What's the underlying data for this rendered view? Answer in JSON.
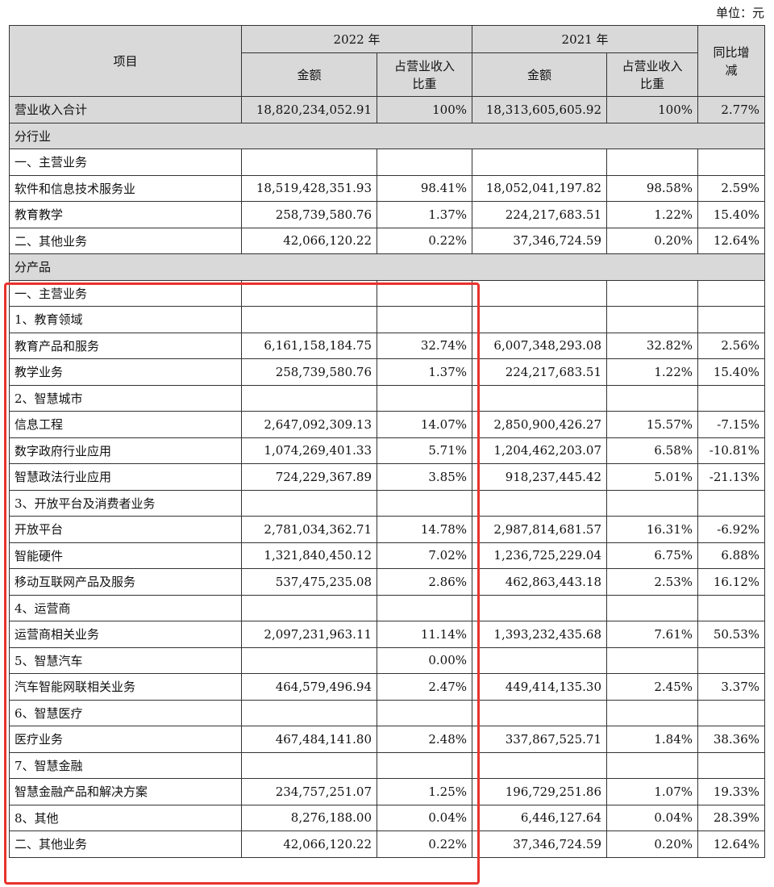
{
  "unit_label": "单位：元",
  "header": {
    "item": "项目",
    "year_2022": "2022 年",
    "year_2021": "2021 年",
    "amount": "金额",
    "share_line1": "占营业收入",
    "share_line2": "比重",
    "yoy_line1": "同比增",
    "yoy_line2": "减"
  },
  "total_row": {
    "name": "营业收入合计",
    "a2022": "18,820,234,052.91",
    "p2022": "100%",
    "a2021": "18,313,605,605.92",
    "p2021": "100%",
    "yoy": "2.77%"
  },
  "sections": {
    "industry": "分行业",
    "product": "分产品"
  },
  "industry_rows": [
    {
      "name": "一、主营业务",
      "a2022": "",
      "p2022": "",
      "a2021": "",
      "p2021": "",
      "yoy": ""
    },
    {
      "name": "软件和信息技术服务业",
      "a2022": "18,519,428,351.93",
      "p2022": "98.41%",
      "a2021": "18,052,041,197.82",
      "p2021": "98.58%",
      "yoy": "2.59%"
    },
    {
      "name": "教育教学",
      "a2022": "258,739,580.76",
      "p2022": "1.37%",
      "a2021": "224,217,683.51",
      "p2021": "1.22%",
      "yoy": "15.40%"
    },
    {
      "name": "二、其他业务",
      "a2022": "42,066,120.22",
      "p2022": "0.22%",
      "a2021": "37,346,724.59",
      "p2021": "0.20%",
      "yoy": "12.64%"
    }
  ],
  "product_rows": [
    {
      "name": "一、主营业务",
      "a2022": "",
      "p2022": "",
      "a2021": "",
      "p2021": "",
      "yoy": ""
    },
    {
      "name": "1、教育领域",
      "a2022": "",
      "p2022": "",
      "a2021": "",
      "p2021": "",
      "yoy": ""
    },
    {
      "name": "教育产品和服务",
      "a2022": "6,161,158,184.75",
      "p2022": "32.74%",
      "a2021": "6,007,348,293.08",
      "p2021": "32.82%",
      "yoy": "2.56%"
    },
    {
      "name": "教学业务",
      "a2022": "258,739,580.76",
      "p2022": "1.37%",
      "a2021": "224,217,683.51",
      "p2021": "1.22%",
      "yoy": "15.40%"
    },
    {
      "name": "2、智慧城市",
      "a2022": "",
      "p2022": "",
      "a2021": "",
      "p2021": "",
      "yoy": ""
    },
    {
      "name": "信息工程",
      "a2022": "2,647,092,309.13",
      "p2022": "14.07%",
      "a2021": "2,850,900,426.27",
      "p2021": "15.57%",
      "yoy": "-7.15%"
    },
    {
      "name": "数字政府行业应用",
      "a2022": "1,074,269,401.33",
      "p2022": "5.71%",
      "a2021": "1,204,462,203.07",
      "p2021": "6.58%",
      "yoy": "-10.81%"
    },
    {
      "name": "智慧政法行业应用",
      "a2022": "724,229,367.89",
      "p2022": "3.85%",
      "a2021": "918,237,445.42",
      "p2021": "5.01%",
      "yoy": "-21.13%"
    },
    {
      "name": "3、开放平台及消费者业务",
      "a2022": "",
      "p2022": "",
      "a2021": "",
      "p2021": "",
      "yoy": ""
    },
    {
      "name": "开放平台",
      "a2022": "2,781,034,362.71",
      "p2022": "14.78%",
      "a2021": "2,987,814,681.57",
      "p2021": "16.31%",
      "yoy": "-6.92%"
    },
    {
      "name": "智能硬件",
      "a2022": "1,321,840,450.12",
      "p2022": "7.02%",
      "a2021": "1,236,725,229.04",
      "p2021": "6.75%",
      "yoy": "6.88%"
    },
    {
      "name": "移动互联网产品及服务",
      "a2022": "537,475,235.08",
      "p2022": "2.86%",
      "a2021": "462,863,443.18",
      "p2021": "2.53%",
      "yoy": "16.12%"
    },
    {
      "name": "4、运营商",
      "a2022": "",
      "p2022": "",
      "a2021": "",
      "p2021": "",
      "yoy": ""
    },
    {
      "name": "运营商相关业务",
      "a2022": "2,097,231,963.11",
      "p2022": "11.14%",
      "a2021": "1,393,232,435.68",
      "p2021": "7.61%",
      "yoy": "50.53%"
    },
    {
      "name": "5、智慧汽车",
      "a2022": "",
      "p2022": "0.00%",
      "a2021": "",
      "p2021": "",
      "yoy": ""
    },
    {
      "name": "汽车智能网联相关业务",
      "a2022": "464,579,496.94",
      "p2022": "2.47%",
      "a2021": "449,414,135.30",
      "p2021": "2.45%",
      "yoy": "3.37%"
    },
    {
      "name": "6、智慧医疗",
      "a2022": "",
      "p2022": "",
      "a2021": "",
      "p2021": "",
      "yoy": ""
    },
    {
      "name": "医疗业务",
      "a2022": "467,484,141.80",
      "p2022": "2.48%",
      "a2021": "337,867,525.71",
      "p2021": "1.84%",
      "yoy": "38.36%"
    },
    {
      "name": "7、智慧金融",
      "a2022": "",
      "p2022": "",
      "a2021": "",
      "p2021": "",
      "yoy": ""
    },
    {
      "name": "智慧金融产品和解决方案",
      "a2022": "234,757,251.07",
      "p2022": "1.25%",
      "a2021": "196,729,251.86",
      "p2021": "1.07%",
      "yoy": "19.33%"
    },
    {
      "name": "8、其他",
      "a2022": "8,276,188.00",
      "p2022": "0.04%",
      "a2021": "6,446,127.64",
      "p2021": "0.04%",
      "yoy": "28.39%"
    },
    {
      "name": "二、其他业务",
      "a2022": "42,066,120.22",
      "p2022": "0.22%",
      "a2021": "37,346,724.59",
      "p2021": "0.20%",
      "yoy": "12.64%"
    }
  ],
  "highlight_color": "#e8322d"
}
